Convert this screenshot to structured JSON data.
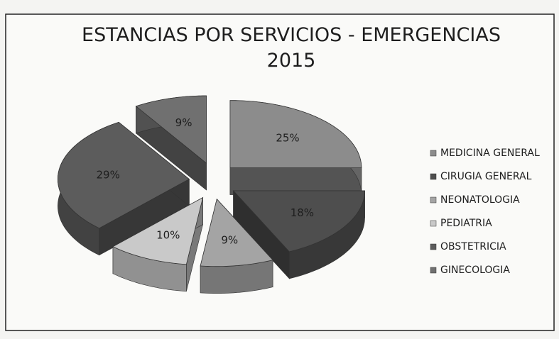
{
  "chart_data": {
    "type": "pie3d",
    "title": "ESTANCIAS POR SERVICIOS - EMERGENCIAS 2015",
    "categories": [
      "MEDICINA GENERAL",
      "CIRUGIA GENERAL",
      "NEONATOLOGIA",
      "PEDIATRIA",
      "OBSTETRICIA",
      "GINECOLOGIA"
    ],
    "values": [
      25,
      18,
      9,
      10,
      29,
      9
    ],
    "value_labels": [
      "25%",
      "18%",
      "9%",
      "10%",
      "29%",
      "9%"
    ],
    "colors": [
      "#8c8c8c",
      "#4e4e4e",
      "#a4a4a4",
      "#c9c9c9",
      "#5c5c5c",
      "#707070"
    ],
    "legend": "right"
  }
}
